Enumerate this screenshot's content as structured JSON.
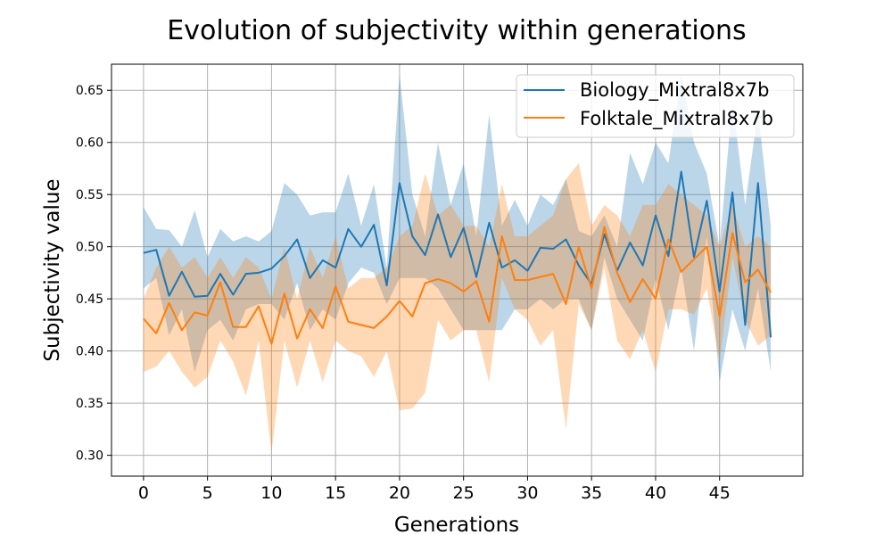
{
  "chart_data": {
    "type": "line",
    "title": "Evolution of subjectivity within generations",
    "xlabel": "Generations",
    "ylabel": "Subjectivity value",
    "xlim": [
      -2.5,
      51.5
    ],
    "ylim": [
      0.28,
      0.675
    ],
    "xticks": [
      0,
      5,
      10,
      15,
      20,
      25,
      30,
      35,
      40,
      45
    ],
    "xtick_labels": [
      "0",
      "5",
      "10",
      "15",
      "20",
      "25",
      "30",
      "35",
      "40",
      "45"
    ],
    "yticks": [
      0.3,
      0.35,
      0.4,
      0.45,
      0.5,
      0.55,
      0.6,
      0.65
    ],
    "ytick_labels": [
      "0.30",
      "0.35",
      "0.40",
      "0.45",
      "0.50",
      "0.55",
      "0.60",
      "0.65"
    ],
    "grid": true,
    "legend_position": "top-right",
    "x": [
      0,
      1,
      2,
      3,
      4,
      5,
      6,
      7,
      8,
      9,
      10,
      11,
      12,
      13,
      14,
      15,
      16,
      17,
      18,
      19,
      20,
      21,
      22,
      23,
      24,
      25,
      26,
      27,
      28,
      29,
      30,
      31,
      32,
      33,
      34,
      35,
      36,
      37,
      38,
      39,
      40,
      41,
      42,
      43,
      44,
      45,
      46,
      47,
      48,
      49
    ],
    "series": [
      {
        "name": "Biology_Mixtral8x7b",
        "color": "#1f77b4",
        "values": [
          0.494,
          0.497,
          0.453,
          0.476,
          0.452,
          0.453,
          0.474,
          0.454,
          0.474,
          0.475,
          0.479,
          0.491,
          0.507,
          0.47,
          0.487,
          0.48,
          0.517,
          0.5,
          0.521,
          0.463,
          0.561,
          0.51,
          0.492,
          0.531,
          0.49,
          0.518,
          0.471,
          0.523,
          0.48,
          0.487,
          0.477,
          0.499,
          0.498,
          0.507,
          0.482,
          0.464,
          0.512,
          0.477,
          0.504,
          0.482,
          0.53,
          0.491,
          0.572,
          0.49,
          0.544,
          0.457,
          0.552,
          0.425,
          0.561,
          0.413
        ],
        "upper": [
          0.538,
          0.517,
          0.516,
          0.5,
          0.535,
          0.49,
          0.517,
          0.505,
          0.51,
          0.505,
          0.515,
          0.561,
          0.55,
          0.53,
          0.533,
          0.533,
          0.57,
          0.52,
          0.56,
          0.48,
          0.665,
          0.55,
          0.51,
          0.6,
          0.54,
          0.58,
          0.51,
          0.627,
          0.52,
          0.545,
          0.52,
          0.55,
          0.54,
          0.565,
          0.515,
          0.51,
          0.53,
          0.5,
          0.59,
          0.56,
          0.6,
          0.58,
          0.665,
          0.6,
          0.57,
          0.5,
          0.64,
          0.54,
          0.63,
          0.52
        ],
        "lower": [
          0.46,
          0.47,
          0.415,
          0.44,
          0.38,
          0.42,
          0.43,
          0.41,
          0.44,
          0.445,
          0.445,
          0.43,
          0.465,
          0.42,
          0.44,
          0.43,
          0.465,
          0.48,
          0.475,
          0.445,
          0.47,
          0.47,
          0.47,
          0.46,
          0.44,
          0.42,
          0.42,
          0.42,
          0.42,
          0.44,
          0.44,
          0.45,
          0.44,
          0.45,
          0.45,
          0.42,
          0.49,
          0.45,
          0.43,
          0.41,
          0.47,
          0.42,
          0.48,
          0.4,
          0.51,
          0.37,
          0.44,
          0.4,
          0.46,
          0.38
        ]
      },
      {
        "name": "Folktale_Mixtral8x7b",
        "color": "#ff7f0e",
        "values": [
          0.431,
          0.417,
          0.446,
          0.42,
          0.437,
          0.434,
          0.466,
          0.423,
          0.423,
          0.443,
          0.407,
          0.455,
          0.412,
          0.44,
          0.422,
          0.462,
          0.428,
          0.425,
          0.422,
          0.433,
          0.448,
          0.433,
          0.465,
          0.469,
          0.465,
          0.457,
          0.467,
          0.428,
          0.51,
          0.468,
          0.468,
          0.471,
          0.474,
          0.445,
          0.5,
          0.46,
          0.519,
          0.475,
          0.447,
          0.469,
          0.45,
          0.507,
          0.476,
          0.488,
          0.5,
          0.433,
          0.513,
          0.466,
          0.478,
          0.456
        ],
        "upper": [
          0.45,
          0.48,
          0.5,
          0.48,
          0.49,
          0.47,
          0.49,
          0.47,
          0.49,
          0.48,
          0.45,
          0.5,
          0.45,
          0.5,
          0.47,
          0.51,
          0.46,
          0.47,
          0.47,
          0.48,
          0.51,
          0.52,
          0.57,
          0.53,
          0.54,
          0.52,
          0.52,
          0.5,
          0.56,
          0.51,
          0.51,
          0.52,
          0.53,
          0.565,
          0.58,
          0.52,
          0.54,
          0.53,
          0.51,
          0.54,
          0.54,
          0.56,
          0.55,
          0.54,
          0.53,
          0.5,
          0.54,
          0.5,
          0.51,
          0.5
        ],
        "lower": [
          0.38,
          0.385,
          0.4,
          0.38,
          0.365,
          0.375,
          0.41,
          0.39,
          0.357,
          0.41,
          0.302,
          0.41,
          0.365,
          0.41,
          0.37,
          0.41,
          0.4,
          0.395,
          0.375,
          0.4,
          0.343,
          0.345,
          0.36,
          0.43,
          0.41,
          0.42,
          0.42,
          0.37,
          0.47,
          0.44,
          0.43,
          0.405,
          0.42,
          0.325,
          0.445,
          0.42,
          0.48,
          0.41,
          0.392,
          0.42,
          0.38,
          0.44,
          0.44,
          0.435,
          0.46,
          0.39,
          0.49,
          0.43,
          0.405,
          0.415
        ]
      }
    ]
  }
}
